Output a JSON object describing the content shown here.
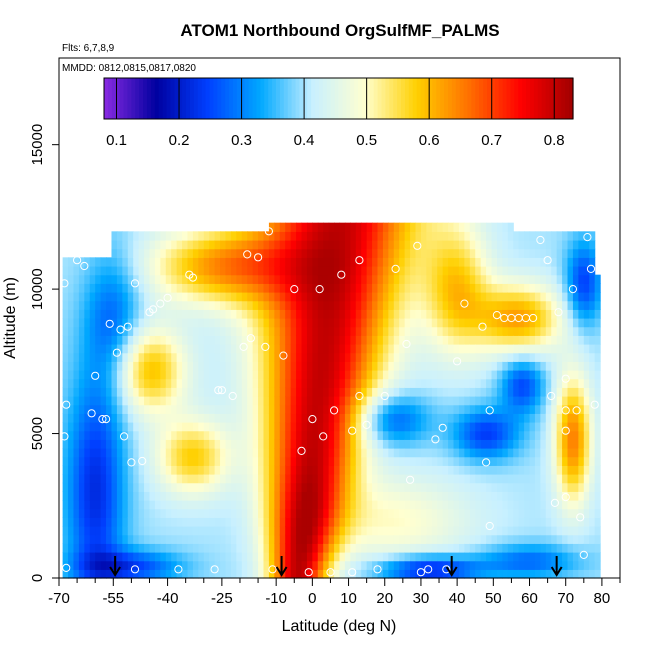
{
  "chart_data": {
    "type": "heatmap",
    "title": "ATOM1 Northbound OrgSulfMF_PALMS",
    "subtitle_flights": "Flts: 6,7,8,9",
    "subtitle_dates": "MMDD: 0812,0815,0817,0820",
    "xlabel": "Latitude (deg N)",
    "ylabel": "Altitude (m)",
    "xlim": [
      -70,
      85
    ],
    "ylim": [
      0,
      18000
    ],
    "x_ticks": [
      "-70",
      "-55",
      "-40",
      "-25",
      "-10",
      "0",
      "10",
      "20",
      "30",
      "40",
      "50",
      "60",
      "70",
      "80"
    ],
    "x_tick_values": [
      -70,
      -55,
      -40,
      -25,
      -10,
      0,
      10,
      20,
      30,
      40,
      50,
      60,
      70,
      80
    ],
    "x_minor_ticks": [
      -65,
      -60,
      -50,
      -45,
      -35,
      -30,
      -20,
      -15,
      -5,
      5,
      15,
      25,
      35,
      45,
      55,
      65,
      75,
      85
    ],
    "y_ticks": [
      "0",
      "5000",
      "10000",
      "15000"
    ],
    "y_tick_values": [
      0,
      5000,
      10000,
      15000
    ],
    "colorbar": {
      "min": 0.08,
      "max": 0.83,
      "ticks": [
        "0.1",
        "0.2",
        "0.3",
        "0.4",
        "0.5",
        "0.6",
        "0.7",
        "0.8"
      ],
      "tick_values": [
        0.1,
        0.2,
        0.3,
        0.4,
        0.5,
        0.6,
        0.7,
        0.8
      ],
      "colors": [
        "#8a2be2",
        "#0000a0",
        "#0040ff",
        "#00a8ff",
        "#c8f0ff",
        "#ffffd0",
        "#ffd000",
        "#ff7000",
        "#ff0000",
        "#a00000"
      ]
    },
    "profile_latitudes": [
      -54.5,
      -8.5,
      38.5,
      67.5
    ],
    "sample_points": [
      {
        "x": -68.5,
        "y": 10200
      },
      {
        "x": -68,
        "y": 6000
      },
      {
        "x": -68.5,
        "y": 4900
      },
      {
        "x": -68,
        "y": 350
      },
      {
        "x": -65,
        "y": 11000
      },
      {
        "x": -63,
        "y": 10800
      },
      {
        "x": -62,
        "y": 11500
      },
      {
        "x": -60,
        "y": 7000
      },
      {
        "x": -61,
        "y": 5700
      },
      {
        "x": -58,
        "y": 5500
      },
      {
        "x": -57,
        "y": 5500
      },
      {
        "x": -56,
        "y": 8800
      },
      {
        "x": -54,
        "y": 7800
      },
      {
        "x": -53,
        "y": 8600
      },
      {
        "x": -52,
        "y": 4900
      },
      {
        "x": -51,
        "y": 8700
      },
      {
        "x": -50,
        "y": 4000
      },
      {
        "x": -49,
        "y": 10200
      },
      {
        "x": -49,
        "y": 300
      },
      {
        "x": -47,
        "y": 4050
      },
      {
        "x": -45,
        "y": 9200
      },
      {
        "x": -44,
        "y": 9300
      },
      {
        "x": -42,
        "y": 9500
      },
      {
        "x": -40,
        "y": 9700
      },
      {
        "x": -37,
        "y": 300
      },
      {
        "x": -34,
        "y": 10500
      },
      {
        "x": -33,
        "y": 10400
      },
      {
        "x": -27,
        "y": 300
      },
      {
        "x": -26,
        "y": 6500
      },
      {
        "x": -25,
        "y": 6500
      },
      {
        "x": -22,
        "y": 6300
      },
      {
        "x": -19,
        "y": 8000
      },
      {
        "x": -18,
        "y": 11200
      },
      {
        "x": -17,
        "y": 8300
      },
      {
        "x": -15,
        "y": 11100
      },
      {
        "x": -13,
        "y": 8000
      },
      {
        "x": -12,
        "y": 12000
      },
      {
        "x": -11,
        "y": 300
      },
      {
        "x": -8,
        "y": 7700
      },
      {
        "x": -5,
        "y": 10000
      },
      {
        "x": -3,
        "y": 4400
      },
      {
        "x": -1,
        "y": 200
      },
      {
        "x": 0,
        "y": 5500
      },
      {
        "x": 2,
        "y": 10000
      },
      {
        "x": 3,
        "y": 4900
      },
      {
        "x": 5,
        "y": 200
      },
      {
        "x": 6,
        "y": 5800
      },
      {
        "x": 8,
        "y": 10500
      },
      {
        "x": 11,
        "y": 5100
      },
      {
        "x": 11,
        "y": 200
      },
      {
        "x": 13,
        "y": 6300
      },
      {
        "x": 13,
        "y": 11000
      },
      {
        "x": 15,
        "y": 5300
      },
      {
        "x": 18,
        "y": 300
      },
      {
        "x": 20,
        "y": 6300
      },
      {
        "x": 23,
        "y": 10700
      },
      {
        "x": 26,
        "y": 8100
      },
      {
        "x": 27,
        "y": 3400
      },
      {
        "x": 29,
        "y": 11500
      },
      {
        "x": 30,
        "y": 200
      },
      {
        "x": 32,
        "y": 300
      },
      {
        "x": 34,
        "y": 4800
      },
      {
        "x": 36,
        "y": 5200
      },
      {
        "x": 37,
        "y": 300
      },
      {
        "x": 40,
        "y": 7500
      },
      {
        "x": 42,
        "y": 9500
      },
      {
        "x": 47,
        "y": 8700
      },
      {
        "x": 48,
        "y": 4000
      },
      {
        "x": 49,
        "y": 5800
      },
      {
        "x": 49,
        "y": 1800
      },
      {
        "x": 51,
        "y": 9100
      },
      {
        "x": 53,
        "y": 9000
      },
      {
        "x": 55,
        "y": 9000
      },
      {
        "x": 57,
        "y": 9000
      },
      {
        "x": 59,
        "y": 9000
      },
      {
        "x": 61,
        "y": 9000
      },
      {
        "x": 63,
        "y": 11700
      },
      {
        "x": 65,
        "y": 11000
      },
      {
        "x": 66,
        "y": 6300
      },
      {
        "x": 67,
        "y": 2600
      },
      {
        "x": 68,
        "y": 9200
      },
      {
        "x": 70,
        "y": 6900
      },
      {
        "x": 70,
        "y": 5800
      },
      {
        "x": 70,
        "y": 5100
      },
      {
        "x": 70,
        "y": 2800
      },
      {
        "x": 72,
        "y": 10000
      },
      {
        "x": 73,
        "y": 5800
      },
      {
        "x": 74,
        "y": 2100
      },
      {
        "x": 75,
        "y": 800
      },
      {
        "x": 76,
        "y": 11800
      },
      {
        "x": 77,
        "y": 10700
      },
      {
        "x": 78,
        "y": 6000
      }
    ]
  }
}
